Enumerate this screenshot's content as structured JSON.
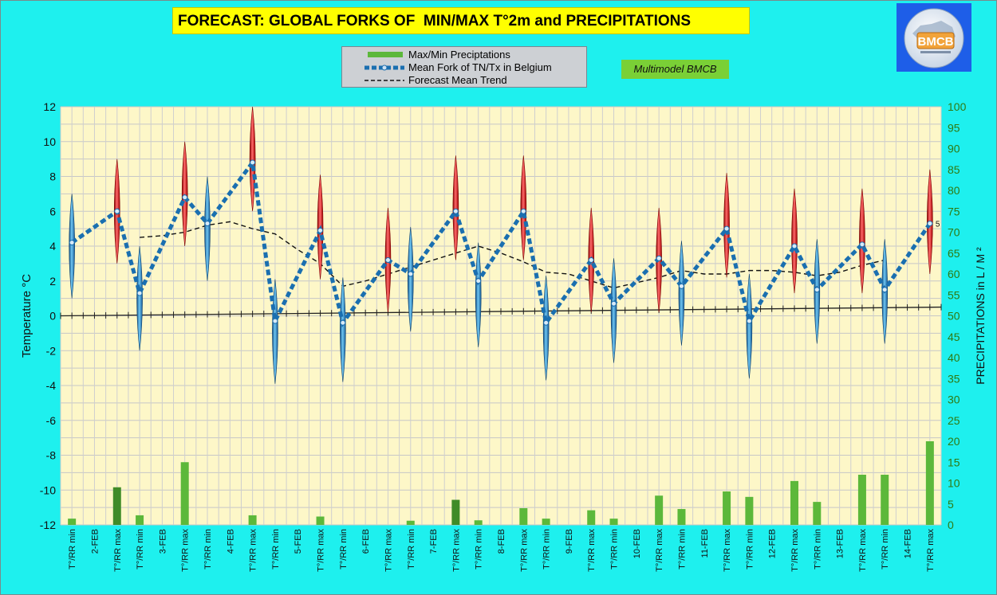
{
  "chart_data": {
    "type": "line",
    "title": "FORECAST: GLOBAL FORKS OF  MIN/MAX T°2m and PRECIPITATIONS",
    "annotation": "Multimodel BMCB",
    "logo_text": "BMCB",
    "ylabel": "Temperature  °C",
    "y2label": "PRECIPITATIONS in L / M ²",
    "ylim": [
      -12,
      12
    ],
    "y2lim": [
      0,
      100
    ],
    "yticks": [
      "12",
      "10",
      "8",
      "6",
      "4",
      "2",
      "0",
      "-2",
      "-4",
      "-6",
      "-8",
      "-10",
      "-12"
    ],
    "y2ticks": [
      "100",
      "95",
      "90",
      "85",
      "80",
      "75",
      "70",
      "65",
      "60",
      "55",
      "50",
      "45",
      "40",
      "35",
      "30",
      "25",
      "20",
      "15",
      "10",
      "5",
      "0"
    ],
    "categories": [
      "T°/RR min",
      "2-FEB",
      "T°/RR max",
      "T°/RR min",
      "3-FEB",
      "T°/RR max",
      "T°/RR min",
      "4-FEB",
      "T°/RR max",
      "T°/RR min",
      "5-FEB",
      "T°/RR max",
      "T°/RR min",
      "6-FEB",
      "T°/RR max",
      "T°/RR min",
      "7-FEB",
      "T°/RR max",
      "T°/RR min",
      "8-FEB",
      "T°/RR max",
      "T°/RR min",
      "9-FEB",
      "T°/RR max",
      "T°/RR min",
      "10-FEB",
      "T°/RR max",
      "T°/RR min",
      "11-FEB",
      "T°/RR max",
      "T°/RR min",
      "12-FEB",
      "T°/RR max",
      "T°/RR min",
      "13-FEB",
      "T°/RR max",
      "T°/RR min",
      "14-FEB",
      "T°/RR max"
    ],
    "legend": {
      "position": "top-center",
      "entries": [
        "Max/Min Preciptations",
        "Mean Fork of TN/Tx in Belgium",
        "Forecast Mean Trend"
      ]
    },
    "series": [
      {
        "name": "Mean Fork of TN/Tx in Belgium",
        "kind": "mean_fork",
        "color": "#1a6fb0",
        "points": [
          [
            0,
            4.2
          ],
          [
            2,
            6.0
          ],
          [
            3,
            1.3
          ],
          [
            5,
            6.8
          ],
          [
            6,
            5.3
          ],
          [
            8,
            8.8
          ],
          [
            9,
            -0.3
          ],
          [
            11,
            4.9
          ],
          [
            12,
            -0.4
          ],
          [
            14,
            3.2
          ],
          [
            15,
            2.4
          ],
          [
            17,
            6.0
          ],
          [
            18,
            2.0
          ],
          [
            20,
            6.0
          ],
          [
            21,
            -0.4
          ],
          [
            23,
            3.2
          ],
          [
            24,
            0.7
          ],
          [
            26,
            3.3
          ],
          [
            27,
            1.7
          ],
          [
            29,
            5.0
          ],
          [
            30,
            -0.3
          ],
          [
            32,
            4.0
          ],
          [
            33,
            1.5
          ],
          [
            35,
            4.1
          ],
          [
            36,
            1.5
          ],
          [
            38,
            5.3
          ]
        ]
      },
      {
        "name": "Forecast Mean Trend",
        "kind": "trend",
        "color": "#111111",
        "points": [
          [
            3,
            4.5
          ],
          [
            4,
            4.6
          ],
          [
            5,
            4.8
          ],
          [
            6,
            5.2
          ],
          [
            7,
            5.4
          ],
          [
            8,
            5.0
          ],
          [
            9,
            4.7
          ],
          [
            10,
            3.8
          ],
          [
            11,
            3.0
          ],
          [
            12,
            1.7
          ],
          [
            13,
            2.0
          ],
          [
            14,
            2.4
          ],
          [
            15,
            2.8
          ],
          [
            16,
            3.2
          ],
          [
            17,
            3.6
          ],
          [
            18,
            4.0
          ],
          [
            19,
            3.6
          ],
          [
            20,
            3.1
          ],
          [
            21,
            2.5
          ],
          [
            22,
            2.4
          ],
          [
            23,
            2.0
          ],
          [
            24,
            1.6
          ],
          [
            25,
            1.9
          ],
          [
            26,
            2.2
          ],
          [
            27,
            2.6
          ],
          [
            28,
            2.4
          ],
          [
            29,
            2.4
          ],
          [
            30,
            2.6
          ],
          [
            31,
            2.6
          ],
          [
            32,
            2.5
          ],
          [
            33,
            2.3
          ],
          [
            34,
            2.5
          ],
          [
            35,
            2.9
          ],
          [
            36,
            3.2
          ]
        ]
      },
      {
        "name": "Max/Min Preciptations",
        "kind": "bars",
        "color": "#5cb83a",
        "darkColor": "#3f8b28",
        "unit": "L/m²",
        "values": [
          1.5,
          0,
          9.0,
          2.3,
          0,
          15.0,
          0,
          0,
          2.3,
          0,
          0,
          2.0,
          0,
          0,
          0,
          1.0,
          0,
          6.0,
          1.1,
          0,
          4.0,
          1.5,
          0,
          3.5,
          1.5,
          0,
          7.0,
          3.8,
          0,
          8.0,
          6.7,
          0,
          10.5,
          5.5,
          0,
          12.0,
          12.0,
          0,
          20.0
        ],
        "dark_indices": [
          2,
          17
        ]
      }
    ],
    "forks": [
      {
        "x": 0,
        "low": 1.0,
        "high": 7.0,
        "kind": "min"
      },
      {
        "x": 2,
        "low": 3.0,
        "high": 9.0,
        "kind": "max"
      },
      {
        "x": 3,
        "low": -2.0,
        "high": 4.0,
        "kind": "min"
      },
      {
        "x": 5,
        "low": 4.0,
        "high": 10.0,
        "kind": "max"
      },
      {
        "x": 6,
        "low": 2.0,
        "high": 8.0,
        "kind": "min"
      },
      {
        "x": 8,
        "low": 6.0,
        "high": 12.0,
        "kind": "max"
      },
      {
        "x": 9,
        "low": -3.9,
        "high": 2.1,
        "kind": "min"
      },
      {
        "x": 11,
        "low": 2.1,
        "high": 8.1,
        "kind": "max"
      },
      {
        "x": 12,
        "low": -3.8,
        "high": 2.2,
        "kind": "min"
      },
      {
        "x": 14,
        "low": 0.2,
        "high": 6.2,
        "kind": "max"
      },
      {
        "x": 15,
        "low": -0.9,
        "high": 5.1,
        "kind": "min"
      },
      {
        "x": 17,
        "low": 3.2,
        "high": 9.2,
        "kind": "max"
      },
      {
        "x": 18,
        "low": -1.8,
        "high": 4.2,
        "kind": "min"
      },
      {
        "x": 20,
        "low": 3.2,
        "high": 9.2,
        "kind": "max"
      },
      {
        "x": 21,
        "low": -3.7,
        "high": 2.3,
        "kind": "min"
      },
      {
        "x": 23,
        "low": 0.2,
        "high": 6.2,
        "kind": "max"
      },
      {
        "x": 24,
        "low": -2.7,
        "high": 3.3,
        "kind": "min"
      },
      {
        "x": 26,
        "low": 0.2,
        "high": 6.2,
        "kind": "max"
      },
      {
        "x": 27,
        "low": -1.7,
        "high": 4.3,
        "kind": "min"
      },
      {
        "x": 29,
        "low": 2.2,
        "high": 8.2,
        "kind": "max"
      },
      {
        "x": 30,
        "low": -3.6,
        "high": 2.4,
        "kind": "min"
      },
      {
        "x": 32,
        "low": 1.3,
        "high": 7.3,
        "kind": "max"
      },
      {
        "x": 33,
        "low": -1.6,
        "high": 4.4,
        "kind": "min"
      },
      {
        "x": 35,
        "low": 1.3,
        "high": 7.3,
        "kind": "max"
      },
      {
        "x": 36,
        "low": -1.6,
        "high": 4.4,
        "kind": "min"
      },
      {
        "x": 38,
        "low": 2.4,
        "high": 8.4,
        "kind": "max"
      }
    ],
    "zero_line": {
      "from": 0,
      "to": 0.5
    },
    "end_label": "5",
    "grid": true
  }
}
